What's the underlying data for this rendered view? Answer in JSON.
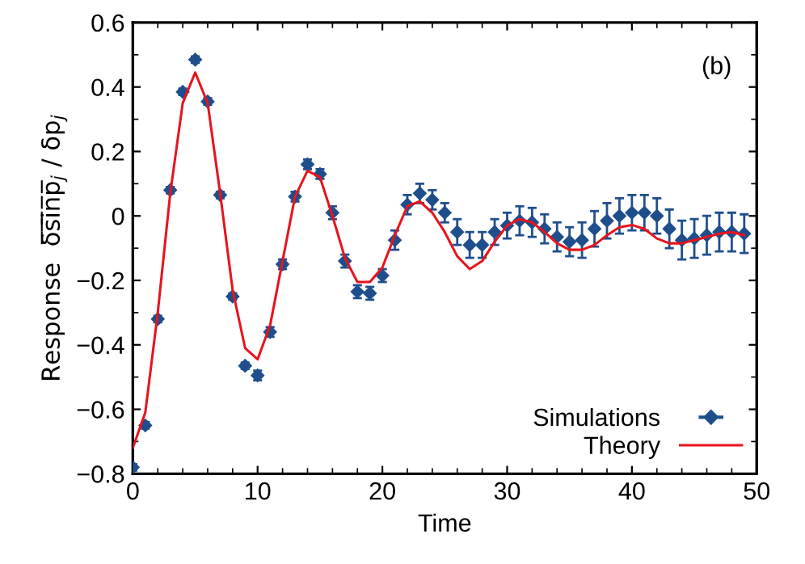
{
  "chart_data": {
    "type": "line",
    "xlabel": "Time",
    "ylabel": "Response  δ̅s̅i̅n̅p̅$_{j}$ / δp$_{j}$",
    "annotations": [
      "(b)"
    ],
    "xlim": [
      0,
      50
    ],
    "xticks": [
      0,
      10,
      20,
      30,
      40,
      50
    ],
    "ylim": [
      -0.8,
      0.6
    ],
    "yticks": [
      -0.8,
      -0.6,
      -0.4,
      -0.2,
      0,
      0.2,
      0.4,
      0.6
    ],
    "grid": false,
    "legend": "bottom right",
    "series": [
      {
        "name": "Simulations",
        "type": "scatter",
        "color": "#1f4e8c",
        "marker": "diamond",
        "x": [
          0,
          1,
          2,
          3,
          4,
          5,
          6,
          7,
          8,
          9,
          10,
          11,
          12,
          13,
          14,
          15,
          16,
          17,
          18,
          19,
          20,
          21,
          22,
          23,
          24,
          25,
          26,
          27,
          28,
          29,
          30,
          31,
          32,
          33,
          34,
          35,
          36,
          37,
          38,
          39,
          40,
          41,
          42,
          43,
          44,
          45,
          46,
          47,
          48,
          49
        ],
        "values": [
          -0.78,
          -0.65,
          -0.32,
          0.08,
          0.385,
          0.485,
          0.355,
          0.065,
          -0.25,
          -0.465,
          -0.495,
          -0.36,
          -0.15,
          0.06,
          0.16,
          0.13,
          0.01,
          -0.14,
          -0.235,
          -0.24,
          -0.185,
          -0.075,
          0.035,
          0.07,
          0.05,
          0.01,
          -0.05,
          -0.09,
          -0.09,
          -0.05,
          -0.03,
          -0.015,
          -0.02,
          -0.04,
          -0.065,
          -0.08,
          -0.075,
          -0.04,
          -0.015,
          0.0,
          0.01,
          0.01,
          0.0,
          -0.04,
          -0.075,
          -0.07,
          -0.06,
          -0.05,
          -0.05,
          -0.055
        ],
        "errors": [
          0.01,
          0.01,
          0.01,
          0.01,
          0.01,
          0.01,
          0.01,
          0.01,
          0.01,
          0.01,
          0.015,
          0.015,
          0.015,
          0.015,
          0.015,
          0.015,
          0.02,
          0.02,
          0.02,
          0.02,
          0.02,
          0.03,
          0.03,
          0.03,
          0.03,
          0.03,
          0.04,
          0.04,
          0.04,
          0.04,
          0.04,
          0.045,
          0.045,
          0.045,
          0.045,
          0.045,
          0.055,
          0.055,
          0.055,
          0.055,
          0.055,
          0.055,
          0.055,
          0.06,
          0.06,
          0.06,
          0.06,
          0.06,
          0.06,
          0.06
        ]
      },
      {
        "name": "Theory",
        "color": "#e8141c",
        "marker": "none",
        "line_style": "solid",
        "x": [
          0,
          1,
          2,
          3,
          4,
          5,
          6,
          7,
          8,
          9,
          10,
          11,
          12,
          13,
          14,
          15,
          16,
          17,
          18,
          19,
          20,
          21,
          22,
          23,
          24,
          25,
          26,
          27,
          28,
          29,
          30,
          31,
          32,
          33,
          34,
          35,
          36,
          37,
          38,
          39,
          40,
          41,
          42,
          43,
          44,
          45,
          46,
          47,
          48,
          49
        ],
        "values": [
          -0.72,
          -0.61,
          -0.3,
          0.07,
          0.35,
          0.445,
          0.35,
          0.07,
          -0.23,
          -0.41,
          -0.445,
          -0.34,
          -0.14,
          0.06,
          0.14,
          0.12,
          0.0,
          -0.13,
          -0.205,
          -0.205,
          -0.16,
          -0.06,
          0.03,
          0.045,
          0.01,
          -0.05,
          -0.125,
          -0.165,
          -0.14,
          -0.08,
          -0.03,
          -0.01,
          -0.02,
          -0.05,
          -0.085,
          -0.105,
          -0.105,
          -0.09,
          -0.06,
          -0.035,
          -0.028,
          -0.04,
          -0.07,
          -0.085,
          -0.085,
          -0.075,
          -0.065,
          -0.055,
          -0.05,
          -0.06
        ]
      }
    ]
  }
}
